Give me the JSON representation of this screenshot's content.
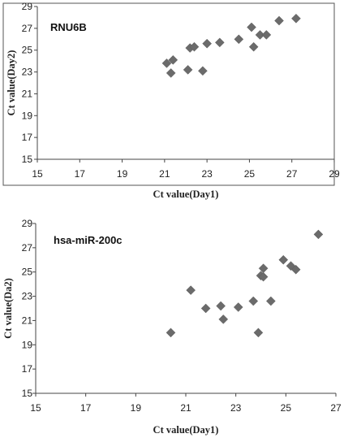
{
  "chart_data": [
    {
      "type": "scatter",
      "label": "RNU6B",
      "xlabel": "Ct value(Day1)",
      "ylabel": "Ct value(Day2)",
      "xlim": [
        15,
        29
      ],
      "ylim": [
        15,
        29
      ],
      "xticks": [
        15,
        17,
        19,
        21,
        23,
        25,
        27,
        29
      ],
      "yticks": [
        15,
        17,
        19,
        21,
        23,
        25,
        27,
        29
      ],
      "marker": "diamond",
      "marker_color": "#6b6b6b",
      "points": [
        {
          "x": 21.1,
          "y": 23.8
        },
        {
          "x": 21.3,
          "y": 22.9
        },
        {
          "x": 21.4,
          "y": 24.1
        },
        {
          "x": 22.1,
          "y": 23.2
        },
        {
          "x": 22.2,
          "y": 25.2
        },
        {
          "x": 22.4,
          "y": 25.3
        },
        {
          "x": 22.8,
          "y": 23.1
        },
        {
          "x": 23.0,
          "y": 25.6
        },
        {
          "x": 23.6,
          "y": 25.7
        },
        {
          "x": 24.5,
          "y": 26.0
        },
        {
          "x": 25.1,
          "y": 27.1
        },
        {
          "x": 25.2,
          "y": 25.3
        },
        {
          "x": 25.5,
          "y": 26.4
        },
        {
          "x": 25.8,
          "y": 26.4
        },
        {
          "x": 26.4,
          "y": 27.7
        },
        {
          "x": 27.2,
          "y": 27.9
        }
      ]
    },
    {
      "type": "scatter",
      "label": "hsa-miR-200c",
      "xlabel": "Ct value(Day1)",
      "ylabel": "Ct value(Da2)",
      "xlim": [
        15,
        27
      ],
      "ylim": [
        15,
        29
      ],
      "xticks": [
        15,
        17,
        19,
        21,
        23,
        25,
        27
      ],
      "yticks": [
        15,
        17,
        19,
        21,
        23,
        25,
        27,
        29
      ],
      "marker": "diamond",
      "marker_color": "#6b6b6b",
      "points": [
        {
          "x": 20.4,
          "y": 20.0
        },
        {
          "x": 21.2,
          "y": 23.5
        },
        {
          "x": 21.8,
          "y": 22.0
        },
        {
          "x": 22.4,
          "y": 22.2
        },
        {
          "x": 22.5,
          "y": 21.1
        },
        {
          "x": 23.1,
          "y": 22.1
        },
        {
          "x": 23.7,
          "y": 22.6
        },
        {
          "x": 23.9,
          "y": 20.0
        },
        {
          "x": 24.0,
          "y": 24.7
        },
        {
          "x": 24.1,
          "y": 25.3
        },
        {
          "x": 24.1,
          "y": 24.6
        },
        {
          "x": 24.4,
          "y": 22.6
        },
        {
          "x": 24.9,
          "y": 26.0
        },
        {
          "x": 25.2,
          "y": 25.5
        },
        {
          "x": 25.4,
          "y": 25.2
        },
        {
          "x": 26.3,
          "y": 28.1
        }
      ]
    }
  ]
}
